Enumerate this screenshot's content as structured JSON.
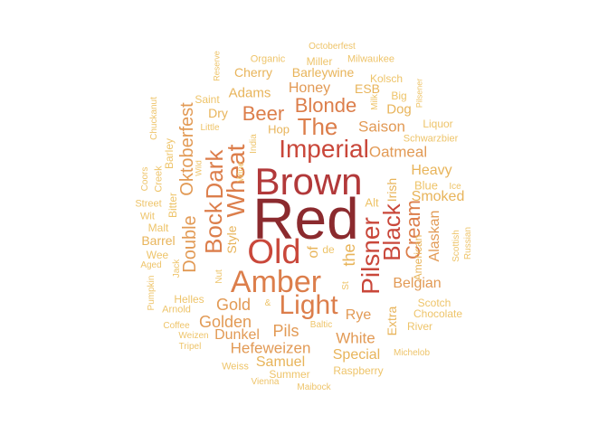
{
  "palette": {
    "darkest": "#8b2a2e",
    "dark": "#b2393a",
    "red": "#c9473a",
    "orange": "#dc7e4b",
    "tan": "#e29a55",
    "gold": "#e8b45a",
    "pale": "#eec46a"
  },
  "words": [
    {
      "t": "Red",
      "c": "darkest"
    },
    {
      "t": "Brown",
      "c": "dark"
    },
    {
      "t": "Old",
      "c": "red"
    },
    {
      "t": "Amber",
      "c": "orange"
    },
    {
      "t": "Light",
      "c": "orange"
    },
    {
      "t": "Imperial",
      "c": "red"
    },
    {
      "t": "Pilsner",
      "c": "red"
    },
    {
      "t": "Wheat",
      "c": "orange"
    },
    {
      "t": "Dark",
      "c": "orange"
    },
    {
      "t": "Bock",
      "c": "orange"
    },
    {
      "t": "Black",
      "c": "red"
    },
    {
      "t": "The",
      "c": "orange"
    },
    {
      "t": "Blonde",
      "c": "orange"
    },
    {
      "t": "Beer",
      "c": "orange"
    },
    {
      "t": "Cream",
      "c": "orange"
    },
    {
      "t": "Oktoberfest",
      "c": "tan"
    },
    {
      "t": "Double",
      "c": "tan"
    },
    {
      "t": "Gold",
      "c": "tan"
    },
    {
      "t": "Golden",
      "c": "tan"
    },
    {
      "t": "Hefeweizen",
      "c": "tan"
    },
    {
      "t": "Pils",
      "c": "tan"
    },
    {
      "t": "White",
      "c": "tan"
    },
    {
      "t": "Saison",
      "c": "tan"
    },
    {
      "t": "Oatmeal",
      "c": "tan"
    },
    {
      "t": "Belgian",
      "c": "tan"
    },
    {
      "t": "the",
      "c": "gold"
    },
    {
      "t": "Alaskan",
      "c": "tan"
    },
    {
      "t": "Honey",
      "c": "tan"
    },
    {
      "t": "Heavy",
      "c": "gold"
    },
    {
      "t": "Smoked",
      "c": "gold"
    },
    {
      "t": "Dunkel",
      "c": "tan"
    },
    {
      "t": "Samuel",
      "c": "gold"
    },
    {
      "t": "Special",
      "c": "gold"
    },
    {
      "t": "Rye",
      "c": "tan"
    },
    {
      "t": "Style",
      "c": "gold"
    },
    {
      "t": "Irish",
      "c": "gold"
    },
    {
      "t": "Extra",
      "c": "gold"
    },
    {
      "t": "American",
      "c": "gold"
    },
    {
      "t": "Adams",
      "c": "gold"
    },
    {
      "t": "Barleywine",
      "c": "gold"
    },
    {
      "t": "Cherry",
      "c": "gold"
    },
    {
      "t": "ESB",
      "c": "gold"
    },
    {
      "t": "Dog",
      "c": "gold"
    },
    {
      "t": "Barrel",
      "c": "gold"
    },
    {
      "t": "Dry",
      "c": "gold"
    },
    {
      "t": "Hop",
      "c": "gold"
    },
    {
      "t": "of",
      "c": "gold"
    },
    {
      "t": "Alt",
      "c": "pale"
    },
    {
      "t": "Blue",
      "c": "pale"
    },
    {
      "t": "Scotch",
      "c": "pale"
    },
    {
      "t": "Chocolate",
      "c": "pale"
    },
    {
      "t": "River",
      "c": "pale"
    },
    {
      "t": "Raspberry",
      "c": "pale"
    },
    {
      "t": "Summer",
      "c": "pale"
    },
    {
      "t": "Weiss",
      "c": "pale"
    },
    {
      "t": "Vienna",
      "c": "pale"
    },
    {
      "t": "Maibock",
      "c": "pale"
    },
    {
      "t": "Michelob",
      "c": "pale"
    },
    {
      "t": "Helles",
      "c": "pale"
    },
    {
      "t": "Arnold",
      "c": "pale"
    },
    {
      "t": "Coffee",
      "c": "pale"
    },
    {
      "t": "Weizen",
      "c": "pale"
    },
    {
      "t": "Tripel",
      "c": "pale"
    },
    {
      "t": "Baltic",
      "c": "pale"
    },
    {
      "t": "Wee",
      "c": "pale"
    },
    {
      "t": "Aged",
      "c": "pale"
    },
    {
      "t": "Malt",
      "c": "pale"
    },
    {
      "t": "Wit",
      "c": "pale"
    },
    {
      "t": "Street",
      "c": "pale"
    },
    {
      "t": "Bitter",
      "c": "pale"
    },
    {
      "t": "Barley",
      "c": "pale"
    },
    {
      "t": "Creek",
      "c": "pale"
    },
    {
      "t": "Coors",
      "c": "pale"
    },
    {
      "t": "Chuckanut",
      "c": "pale"
    },
    {
      "t": "Wild",
      "c": "pale"
    },
    {
      "t": "Wine",
      "c": "pale"
    },
    {
      "t": "India",
      "c": "pale"
    },
    {
      "t": "Little",
      "c": "pale"
    },
    {
      "t": "Saint",
      "c": "pale"
    },
    {
      "t": "Reserve",
      "c": "pale"
    },
    {
      "t": "Organic",
      "c": "pale"
    },
    {
      "t": "Miller",
      "c": "pale"
    },
    {
      "t": "Octoberfest",
      "c": "pale"
    },
    {
      "t": "Milwaukee",
      "c": "pale"
    },
    {
      "t": "Kolsch",
      "c": "pale"
    },
    {
      "t": "Milk",
      "c": "pale"
    },
    {
      "t": "Big",
      "c": "pale"
    },
    {
      "t": "Pilsener",
      "c": "pale"
    },
    {
      "t": "Liquor",
      "c": "pale"
    },
    {
      "t": "Schwarzbier",
      "c": "pale"
    },
    {
      "t": "Ice",
      "c": "pale"
    },
    {
      "t": "Scottish",
      "c": "pale"
    },
    {
      "t": "Russian",
      "c": "pale"
    },
    {
      "t": "Jack",
      "c": "pale"
    },
    {
      "t": "Pumpkin",
      "c": "pale"
    },
    {
      "t": "Nut",
      "c": "pale"
    },
    {
      "t": "St",
      "c": "pale"
    },
    {
      "t": "&",
      "c": "pale"
    },
    {
      "t": "de",
      "c": "pale"
    }
  ]
}
